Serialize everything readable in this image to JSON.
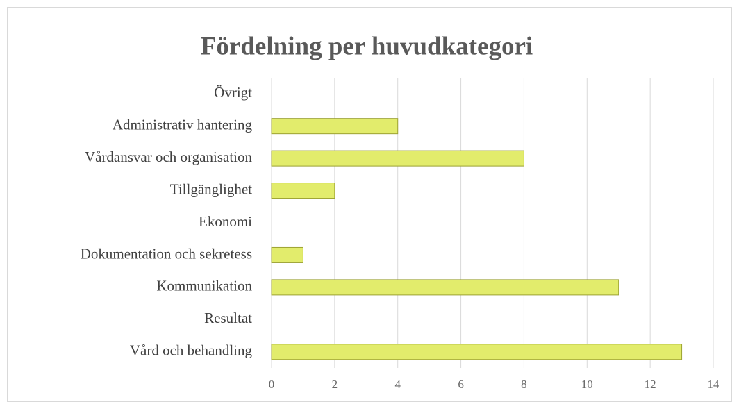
{
  "chart_data": {
    "type": "bar",
    "orientation": "horizontal",
    "title": "Fördelning per huvudkategori",
    "categories": [
      "Övrigt",
      "Administrativ hantering",
      "Vårdansvar och organisation",
      "Tillgänglighet",
      "Ekonomi",
      "Dokumentation och sekretess",
      "Kommunikation",
      "Resultat",
      "Vård och behandling"
    ],
    "values": [
      0,
      4,
      8,
      2,
      0,
      1,
      11,
      0,
      13
    ],
    "color": "#e2ec6c",
    "xlim": [
      0,
      14
    ],
    "xticks": [
      0,
      2,
      4,
      6,
      8,
      10,
      12,
      14
    ],
    "grid": true
  }
}
